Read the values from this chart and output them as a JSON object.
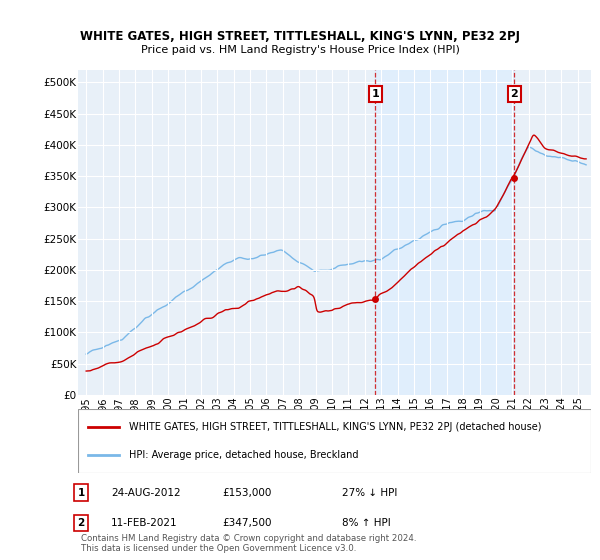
{
  "title": "WHITE GATES, HIGH STREET, TITTLESHALL, KING'S LYNN, PE32 2PJ",
  "subtitle": "Price paid vs. HM Land Registry's House Price Index (HPI)",
  "ylabel_ticks": [
    "£0",
    "£50K",
    "£100K",
    "£150K",
    "£200K",
    "£250K",
    "£300K",
    "£350K",
    "£400K",
    "£450K",
    "£500K"
  ],
  "ytick_values": [
    0,
    50000,
    100000,
    150000,
    200000,
    250000,
    300000,
    350000,
    400000,
    450000,
    500000
  ],
  "ylim": [
    0,
    520000
  ],
  "xlim_start": 1994.5,
  "xlim_end": 2025.8,
  "hpi_color": "#7ab8e8",
  "price_color": "#cc0000",
  "dashed_vline_color": "#cc0000",
  "shade_color": "#ddeeff",
  "point1_year": 2012.65,
  "point1_price": 153000,
  "point2_year": 2021.12,
  "point2_price": 347500,
  "point1_label": "1",
  "point1_date": "24-AUG-2012",
  "point1_amount": "£153,000",
  "point1_pct": "27% ↓ HPI",
  "point2_label": "2",
  "point2_date": "11-FEB-2021",
  "point2_amount": "£347,500",
  "point2_pct": "8% ↑ HPI",
  "legend_property": "WHITE GATES, HIGH STREET, TITTLESHALL, KING'S LYNN, PE32 2PJ (detached house)",
  "legend_hpi": "HPI: Average price, detached house, Breckland",
  "footnote": "Contains HM Land Registry data © Crown copyright and database right 2024.\nThis data is licensed under the Open Government Licence v3.0.",
  "xtick_years": [
    "1995",
    "1996",
    "1997",
    "1998",
    "1999",
    "2000",
    "2001",
    "2002",
    "2003",
    "2004",
    "2005",
    "2006",
    "2007",
    "2008",
    "2009",
    "2010",
    "2011",
    "2012",
    "2013",
    "2014",
    "2015",
    "2016",
    "2017",
    "2018",
    "2019",
    "2020",
    "2021",
    "2022",
    "2023",
    "2024",
    "2025"
  ],
  "background_color": "#e8f0f8",
  "grid_color": "#ffffff"
}
